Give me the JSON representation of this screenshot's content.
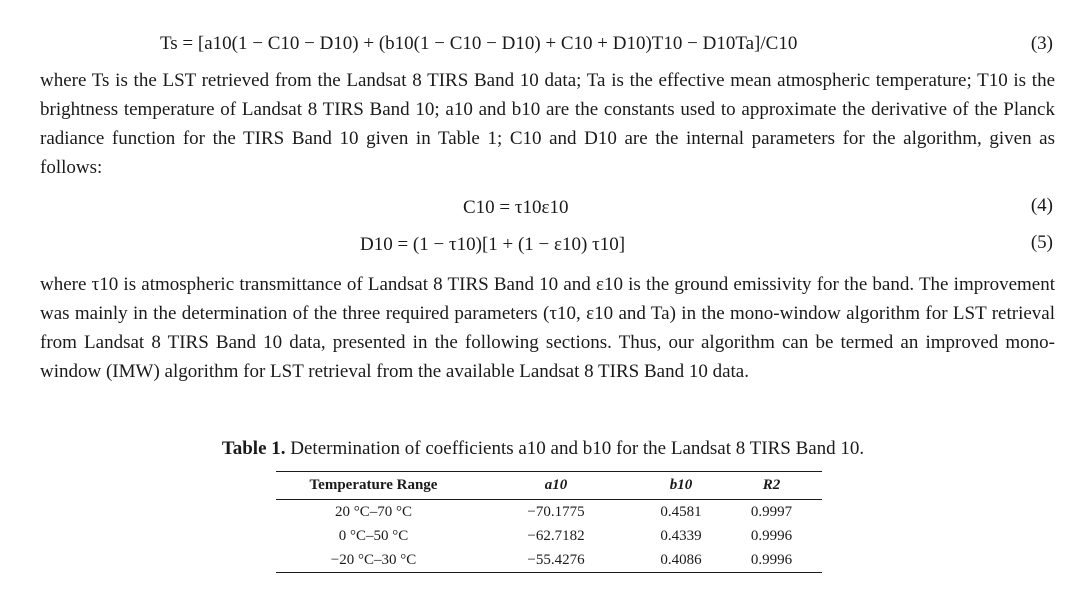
{
  "equations": {
    "eq3": {
      "text": "Ts = [a10(1 − C10 − D10) + (b10(1 − C10 − D10) + C10 + D10)T10 − D10Ta]/C10",
      "number": "(3)"
    },
    "eq4": {
      "text": "C10 = τ10ε10",
      "number": "(4)"
    },
    "eq5": {
      "text": "D10 = (1 − τ10)[1 + (1 − ε10) τ10]",
      "number": "(5)"
    }
  },
  "paragraphs": {
    "p1": "where Ts is the LST retrieved from the Landsat 8 TIRS Band 10 data; Ta is the effective mean atmospheric temperature; T10 is the brightness temperature of Landsat 8 TIRS Band 10; a10 and b10 are the constants used to approximate the derivative of the Planck radiance function for the TIRS Band 10 given in Table 1; C10 and D10 are the internal parameters for the algorithm, given as follows:",
    "p2": "where τ10 is atmospheric transmittance of Landsat 8 TIRS Band 10 and ε10 is the ground emissivity for the band. The improvement was mainly in the determination of the three required parameters (τ10, ε10 and Ta) in the mono-window algorithm for LST retrieval from Landsat 8 TIRS Band 10 data, presented in the following sections. Thus, our algorithm can be termed an improved mono-window (IMW) algorithm for LST retrieval from the available Landsat 8 TIRS Band 10 data."
  },
  "table": {
    "caption_label": "Table 1.",
    "caption_text": "Determination of coefficients a10 and b10 for the Landsat 8 TIRS Band 10.",
    "headers": [
      "Temperature Range",
      "a10",
      "b10",
      "R2"
    ],
    "rows": [
      [
        "20 °C–70 °C",
        "−70.1775",
        "0.4581",
        "0.9997"
      ],
      [
        "0 °C–50 °C",
        "−62.7182",
        "0.4339",
        "0.9996"
      ],
      [
        "−20 °C–30 °C",
        "−55.4276",
        "0.4086",
        "0.9996"
      ]
    ]
  }
}
